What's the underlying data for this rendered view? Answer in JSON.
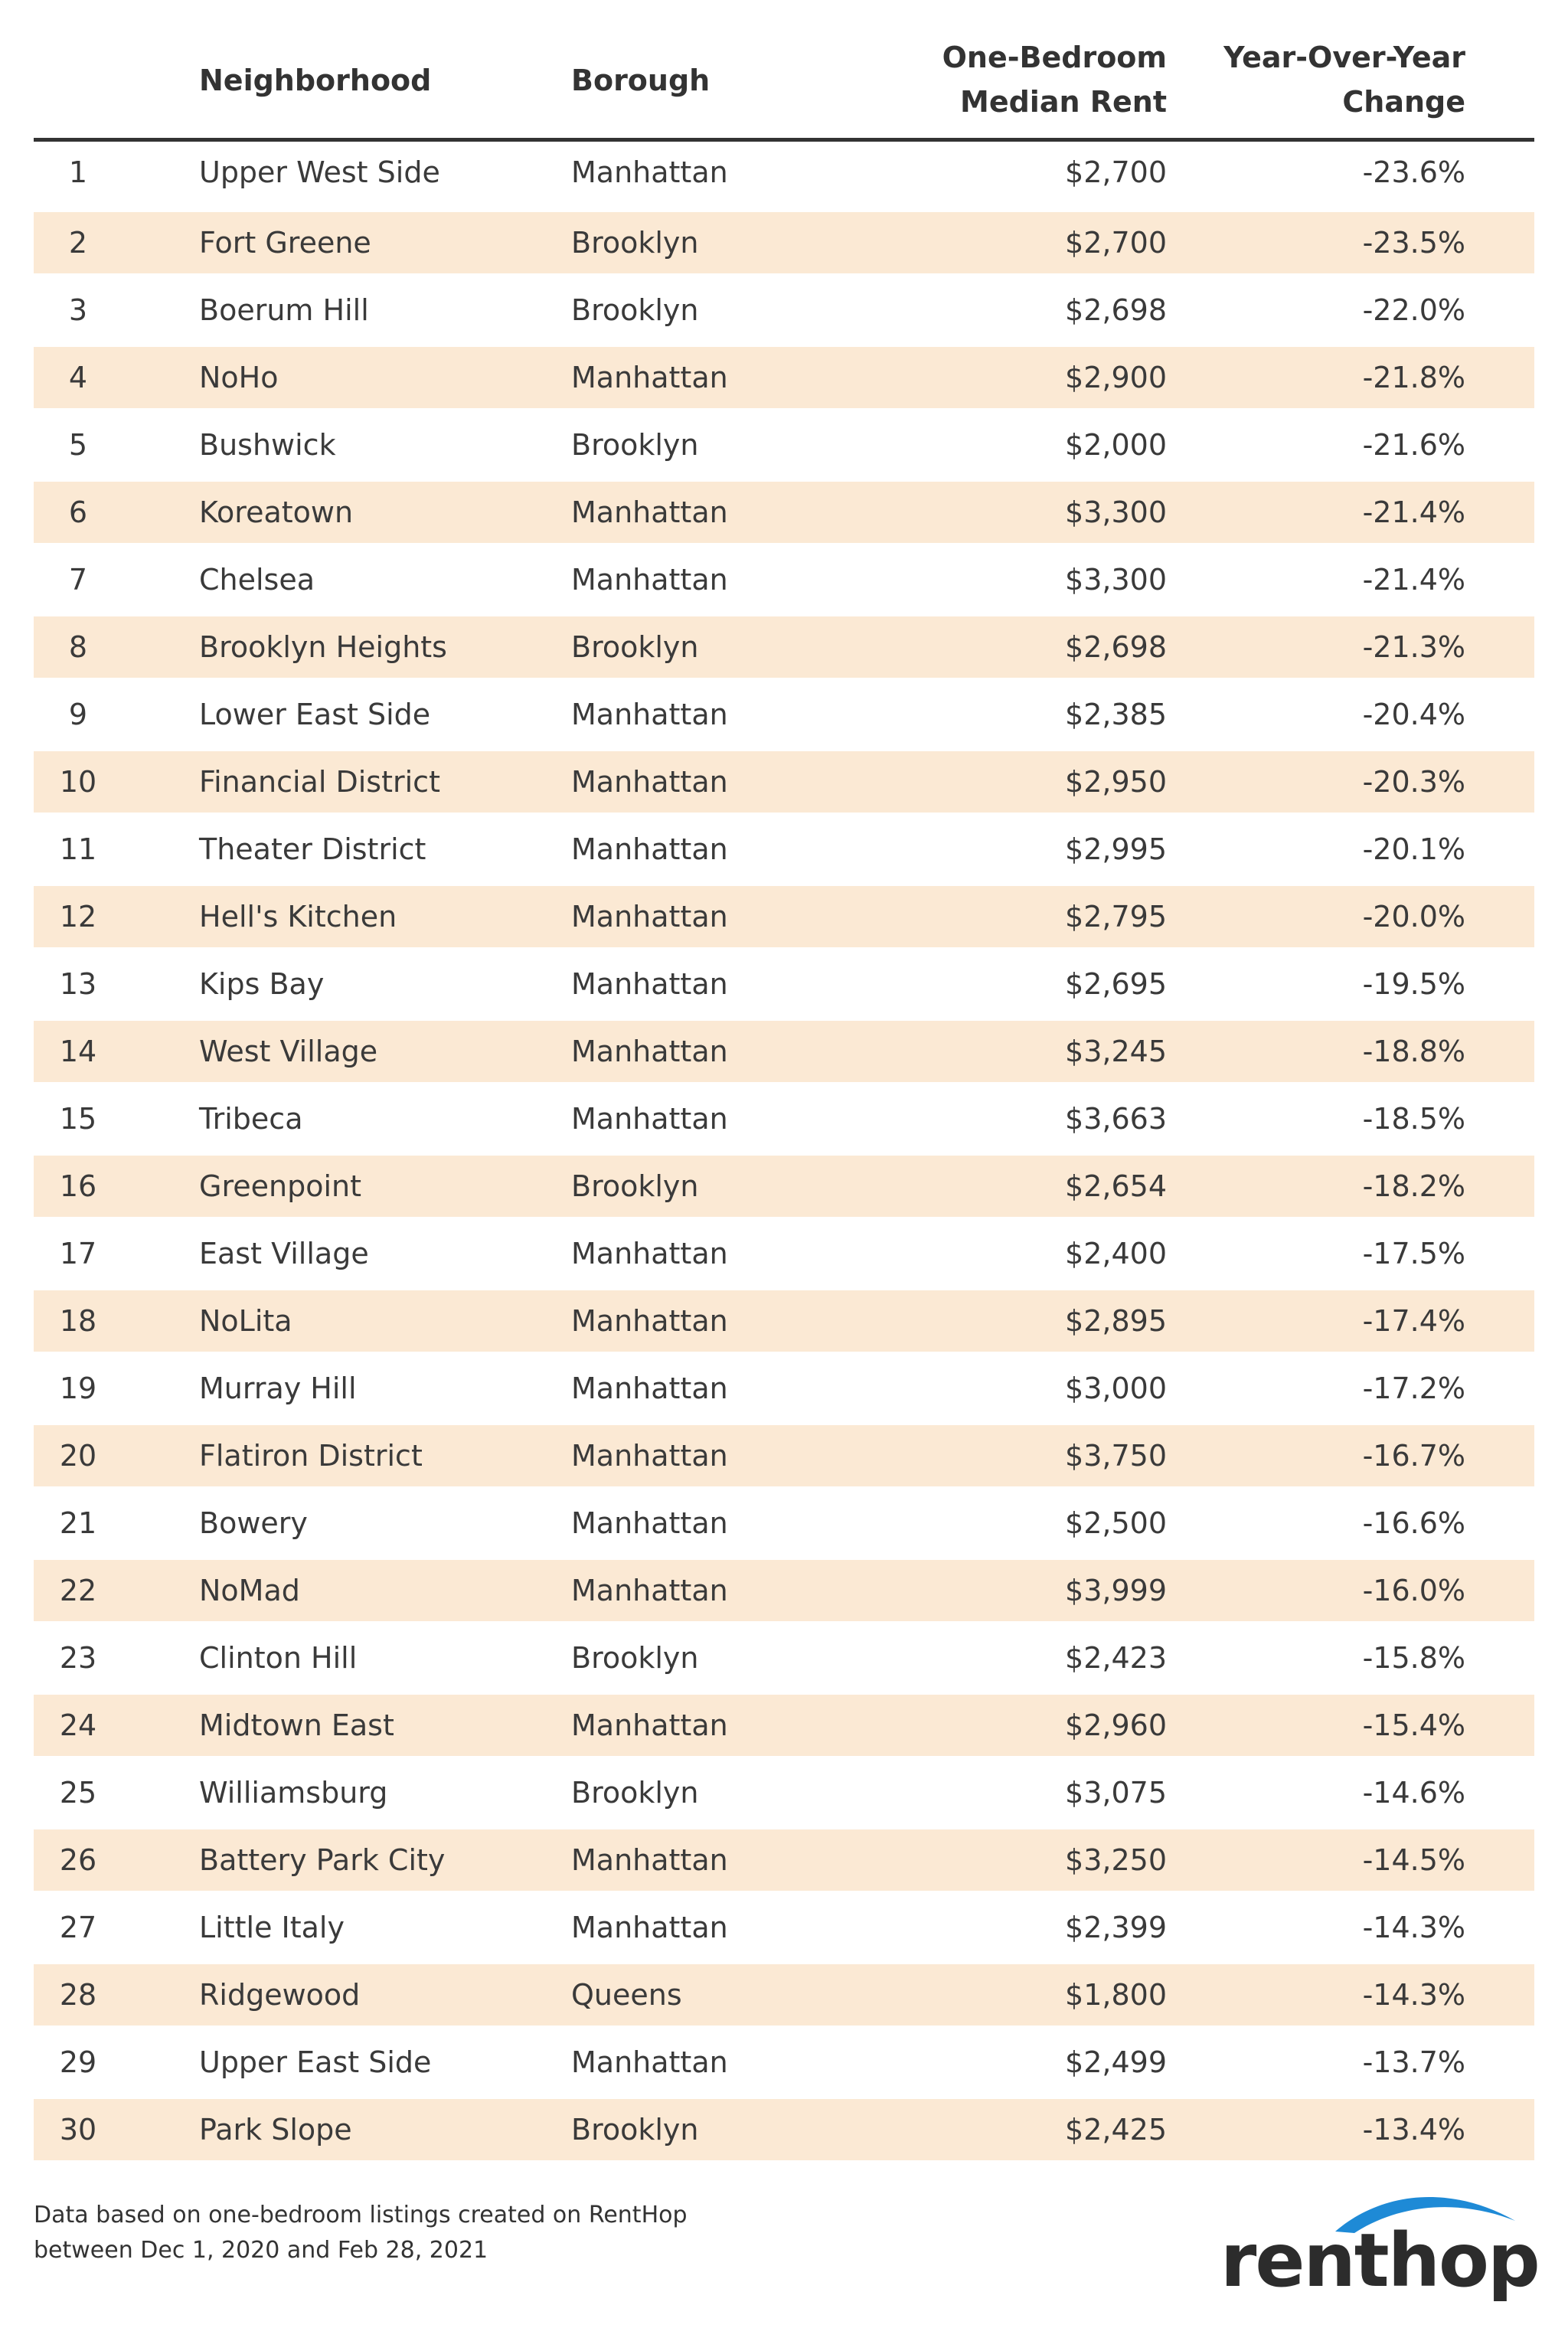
{
  "header": {
    "col_neighborhood": "Neighborhood",
    "col_borough": "Borough",
    "col_rent_line1": "One-Bedroom",
    "col_rent_line2": "Median Rent",
    "col_change_line1": "Year-Over-Year",
    "col_change_line2": "Change"
  },
  "rows": [
    {
      "rank": "1",
      "neighborhood": "Upper West Side",
      "borough": "Manhattan",
      "rent": "$2,700",
      "change": "-23.6%"
    },
    {
      "rank": "2",
      "neighborhood": "Fort Greene",
      "borough": "Brooklyn",
      "rent": "$2,700",
      "change": "-23.5%"
    },
    {
      "rank": "3",
      "neighborhood": "Boerum Hill",
      "borough": "Brooklyn",
      "rent": "$2,698",
      "change": "-22.0%"
    },
    {
      "rank": "4",
      "neighborhood": "NoHo",
      "borough": "Manhattan",
      "rent": "$2,900",
      "change": "-21.8%"
    },
    {
      "rank": "5",
      "neighborhood": "Bushwick",
      "borough": "Brooklyn",
      "rent": "$2,000",
      "change": "-21.6%"
    },
    {
      "rank": "6",
      "neighborhood": "Koreatown",
      "borough": "Manhattan",
      "rent": "$3,300",
      "change": "-21.4%"
    },
    {
      "rank": "7",
      "neighborhood": "Chelsea",
      "borough": "Manhattan",
      "rent": "$3,300",
      "change": "-21.4%"
    },
    {
      "rank": "8",
      "neighborhood": "Brooklyn Heights",
      "borough": "Brooklyn",
      "rent": "$2,698",
      "change": "-21.3%"
    },
    {
      "rank": "9",
      "neighborhood": "Lower East Side",
      "borough": "Manhattan",
      "rent": "$2,385",
      "change": "-20.4%"
    },
    {
      "rank": "10",
      "neighborhood": "Financial District",
      "borough": "Manhattan",
      "rent": "$2,950",
      "change": "-20.3%"
    },
    {
      "rank": "11",
      "neighborhood": "Theater District",
      "borough": "Manhattan",
      "rent": "$2,995",
      "change": "-20.1%"
    },
    {
      "rank": "12",
      "neighborhood": "Hell's Kitchen",
      "borough": "Manhattan",
      "rent": "$2,795",
      "change": "-20.0%"
    },
    {
      "rank": "13",
      "neighborhood": "Kips Bay",
      "borough": "Manhattan",
      "rent": "$2,695",
      "change": "-19.5%"
    },
    {
      "rank": "14",
      "neighborhood": "West Village",
      "borough": "Manhattan",
      "rent": "$3,245",
      "change": "-18.8%"
    },
    {
      "rank": "15",
      "neighborhood": "Tribeca",
      "borough": "Manhattan",
      "rent": "$3,663",
      "change": "-18.5%"
    },
    {
      "rank": "16",
      "neighborhood": "Greenpoint",
      "borough": "Brooklyn",
      "rent": "$2,654",
      "change": "-18.2%"
    },
    {
      "rank": "17",
      "neighborhood": "East Village",
      "borough": "Manhattan",
      "rent": "$2,400",
      "change": "-17.5%"
    },
    {
      "rank": "18",
      "neighborhood": "NoLita",
      "borough": "Manhattan",
      "rent": "$2,895",
      "change": "-17.4%"
    },
    {
      "rank": "19",
      "neighborhood": "Murray Hill",
      "borough": "Manhattan",
      "rent": "$3,000",
      "change": "-17.2%"
    },
    {
      "rank": "20",
      "neighborhood": "Flatiron District",
      "borough": "Manhattan",
      "rent": "$3,750",
      "change": "-16.7%"
    },
    {
      "rank": "21",
      "neighborhood": "Bowery",
      "borough": "Manhattan",
      "rent": "$2,500",
      "change": "-16.6%"
    },
    {
      "rank": "22",
      "neighborhood": "NoMad",
      "borough": "Manhattan",
      "rent": "$3,999",
      "change": "-16.0%"
    },
    {
      "rank": "23",
      "neighborhood": "Clinton Hill",
      "borough": "Brooklyn",
      "rent": "$2,423",
      "change": "-15.8%"
    },
    {
      "rank": "24",
      "neighborhood": "Midtown East",
      "borough": "Manhattan",
      "rent": "$2,960",
      "change": "-15.4%"
    },
    {
      "rank": "25",
      "neighborhood": "Williamsburg",
      "borough": "Brooklyn",
      "rent": "$3,075",
      "change": "-14.6%"
    },
    {
      "rank": "26",
      "neighborhood": "Battery Park City",
      "borough": "Manhattan",
      "rent": "$3,250",
      "change": "-14.5%"
    },
    {
      "rank": "27",
      "neighborhood": "Little Italy",
      "borough": "Manhattan",
      "rent": "$2,399",
      "change": "-14.3%"
    },
    {
      "rank": "28",
      "neighborhood": "Ridgewood",
      "borough": "Queens",
      "rent": "$1,800",
      "change": "-14.3%"
    },
    {
      "rank": "29",
      "neighborhood": "Upper East Side",
      "borough": "Manhattan",
      "rent": "$2,499",
      "change": "-13.7%"
    },
    {
      "rank": "30",
      "neighborhood": "Park Slope",
      "borough": "Brooklyn",
      "rent": "$2,425",
      "change": "-13.4%"
    }
  ],
  "footer": {
    "note_line1": "Data based on one-bedroom listings created on RentHop",
    "note_line2": "between Dec 1, 2020 and Feb 28, 2021"
  },
  "logo": {
    "text": "renthop",
    "icon": "renthop-roof-arc-icon",
    "accent_color": "#1e8ad6"
  },
  "colors": {
    "stripe": "#fbe9d4",
    "text": "#3a3a3a",
    "header_rule": "#333333"
  }
}
